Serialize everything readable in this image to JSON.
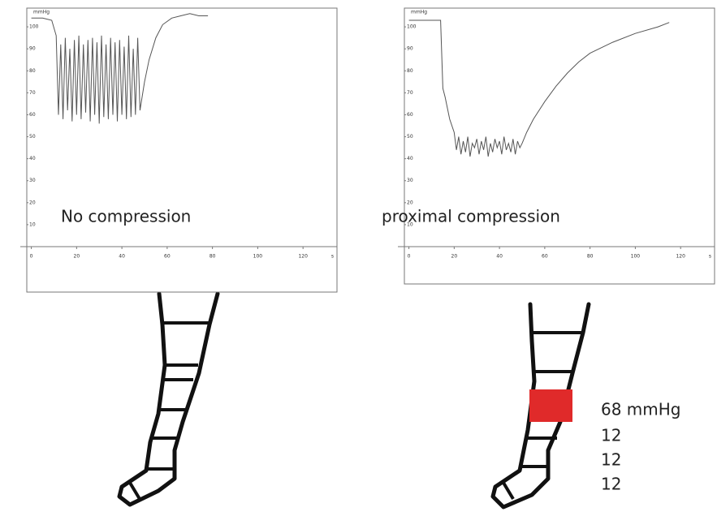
{
  "chart_data": [
    {
      "type": "line",
      "y_label": "mmHg",
      "x_label": "s",
      "annotation": "No compression",
      "x": [
        0,
        5,
        9,
        11,
        12,
        13,
        14,
        15,
        16,
        17,
        18,
        19,
        20,
        21,
        22,
        23,
        24,
        25,
        26,
        27,
        28,
        29,
        30,
        31,
        32,
        33,
        34,
        35,
        36,
        37,
        38,
        39,
        40,
        41,
        42,
        43,
        44,
        45,
        46,
        47,
        48,
        50,
        52,
        55,
        58,
        62,
        66,
        70,
        74,
        78
      ],
      "values": [
        104,
        104,
        103,
        96,
        60,
        92,
        58,
        95,
        62,
        90,
        57,
        94,
        60,
        96,
        58,
        92,
        61,
        94,
        57,
        95,
        60,
        93,
        56,
        96,
        59,
        92,
        58,
        95,
        60,
        93,
        57,
        94,
        60,
        91,
        58,
        96,
        59,
        90,
        60,
        95,
        62,
        75,
        85,
        95,
        101,
        104,
        105,
        106,
        105,
        105
      ],
      "color": "#555",
      "xlim": [
        -2,
        135
      ],
      "ylim": [
        0,
        110
      ],
      "xticks": [
        0,
        20,
        40,
        60,
        80,
        100,
        120
      ],
      "yticks": [
        10,
        20,
        30,
        40,
        50,
        60,
        70,
        80,
        90,
        100
      ]
    },
    {
      "type": "line",
      "y_label": "mmHg",
      "x_label": "s",
      "annotation": "proximal compression",
      "x": [
        0,
        5,
        10,
        14,
        15,
        16,
        18,
        20,
        21,
        22,
        23,
        24,
        25,
        26,
        27,
        28,
        29,
        30,
        31,
        32,
        33,
        34,
        35,
        36,
        37,
        38,
        39,
        40,
        41,
        42,
        43,
        44,
        45,
        46,
        47,
        48,
        49,
        50,
        52,
        55,
        60,
        65,
        70,
        75,
        80,
        90,
        100,
        110,
        115
      ],
      "values": [
        103,
        103,
        103,
        103,
        72,
        68,
        58,
        52,
        44,
        50,
        42,
        48,
        43,
        50,
        41,
        47,
        45,
        49,
        42,
        48,
        44,
        50,
        41,
        47,
        43,
        49,
        45,
        48,
        42,
        50,
        44,
        47,
        43,
        49,
        42,
        48,
        45,
        47,
        52,
        58,
        66,
        73,
        79,
        84,
        88,
        93,
        97,
        100,
        102
      ],
      "color": "#555",
      "xlim": [
        -2,
        135
      ],
      "ylim": [
        0,
        110
      ],
      "xticks": [
        0,
        20,
        40,
        60,
        80,
        100,
        120
      ],
      "yticks": [
        10,
        20,
        30,
        40,
        50,
        60,
        70,
        80,
        90,
        100
      ]
    }
  ],
  "legs": {
    "pressures": [
      "68 mmHg",
      "12",
      "12",
      "12"
    ]
  }
}
